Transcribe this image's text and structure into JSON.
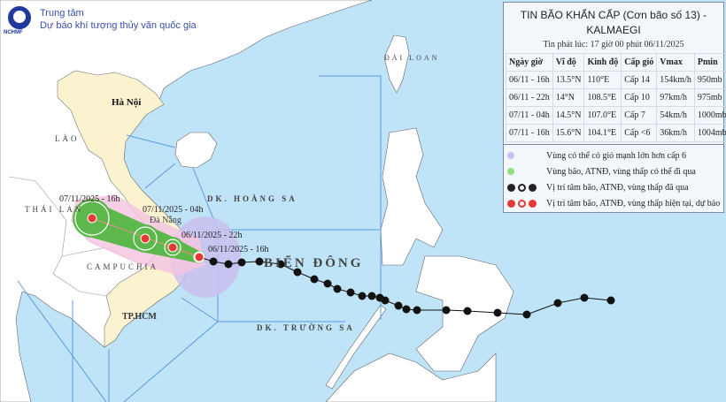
{
  "header": {
    "org_line1": "Trung tâm",
    "org_line2": "Dự báo khí tượng thủy văn quốc gia",
    "logo_text": "NCHMF"
  },
  "bulletin": {
    "title_line1": "TIN BÃO KHẨN CẤP (Cơn bão số 13) -",
    "title_line2": "KALMAEGI",
    "issued": "Tin phát lúc: 17 giờ 00 phút 06/11/2025",
    "columns": [
      "Ngày giờ",
      "Vĩ độ",
      "Kinh độ",
      "Cấp gió",
      "Vmax",
      "Pmin"
    ],
    "rows": [
      [
        "06/11 - 16h",
        "13.5°N",
        "110°E",
        "Cấp 14",
        "154km/h",
        "950mb"
      ],
      [
        "06/11 - 22h",
        "14°N",
        "108.5°E",
        "Cấp 10",
        "97km/h",
        "975mb"
      ],
      [
        "07/11 - 04h",
        "14.5°N",
        "107.0°E",
        "Cấp 7",
        "54km/h",
        "1000mb"
      ],
      [
        "07/11 - 16h",
        "15.6°N",
        "104.1°E",
        "Cấp <6",
        "36km/h",
        "1004mb"
      ]
    ]
  },
  "legend": {
    "items": [
      {
        "label": "Vùng có thể có gió mạnh lớn hơn cấp 6",
        "color": "#c9c0f0"
      },
      {
        "label": "Vùng bão, ATNĐ, vùng thấp có thể đi qua",
        "color": "#8fe07a"
      },
      {
        "label": "Vị trí tâm bão, ATNĐ, vùng thấp đã qua",
        "color": "#222222"
      },
      {
        "label": "Vị trí tâm bão, ATNĐ, vùng thấp hiện tại, dự báo",
        "color": "#e53935"
      }
    ]
  },
  "map": {
    "places": {
      "hanoi": "Hà Nội",
      "lao": "LÀO",
      "thailan": "THÁI LAN",
      "campuchia": "CAMPUCHIA",
      "tphcm": "TP.HCM",
      "danang": "Đà Nẵng",
      "hoangsa": "DK. HOÀNG SA",
      "truongsa": "DK. TRƯỜNG SA",
      "biendong": "BIỂN ĐÔNG",
      "dailoan": "ĐÀI LOAN"
    },
    "forecast_times": [
      "06/11/2025 - 16h",
      "06/11/2025 - 22h",
      "07/11/2025 - 04h",
      "07/11/2025 - 16h"
    ],
    "colors": {
      "sea": "#bfe3f7",
      "vietnam": "#fbf3d0",
      "wind_zone": "#c9c0f0",
      "track_zone": "#5cb84a",
      "risk_zone": "#f5c6e0",
      "storm": "#e53935"
    }
  }
}
